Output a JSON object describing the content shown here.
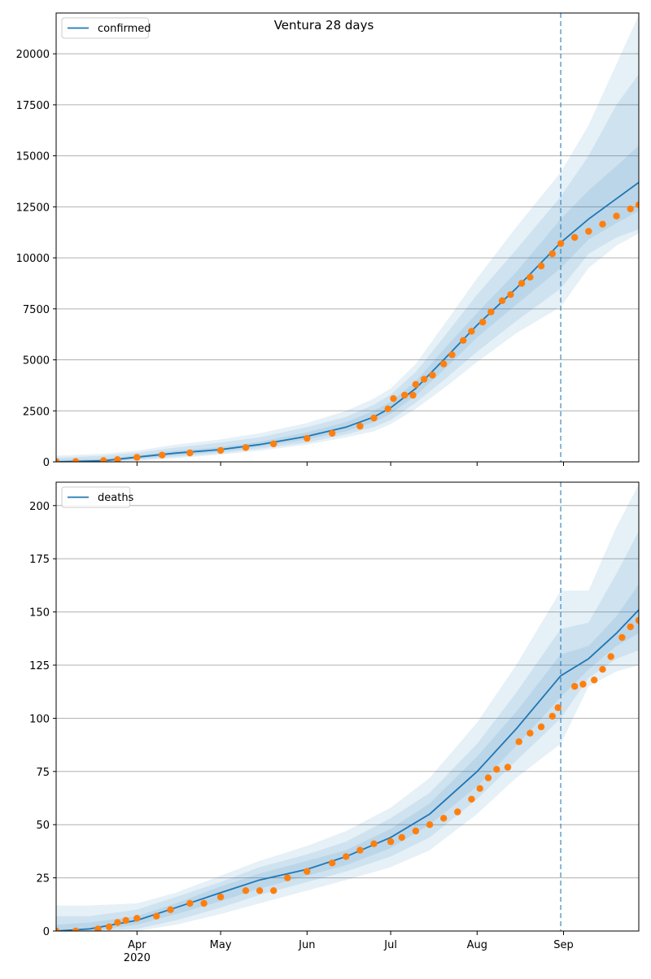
{
  "figure_title": "Ventura 28 days",
  "colors": {
    "model": "#1f77b4",
    "observed": "#ff7f0e",
    "band": "#1f77b4",
    "grid": "#b0b0b0",
    "vline": "#1f77b4"
  },
  "chart_data": [
    {
      "type": "line",
      "panel": "confirmed",
      "legend": [
        "confirmed"
      ],
      "legend_position": "top-left",
      "x_range": [
        "2020-03-03",
        "2020-09-28"
      ],
      "forecast_start": "2020-08-31",
      "ylim": [
        0,
        22000
      ],
      "yticks": [
        0,
        2500,
        5000,
        7500,
        10000,
        12500,
        15000,
        17500,
        20000
      ],
      "grid": "y",
      "model": {
        "x": [
          "2020-03-03",
          "2020-03-20",
          "2020-04-01",
          "2020-04-15",
          "2020-05-01",
          "2020-05-15",
          "2020-06-01",
          "2020-06-15",
          "2020-06-25",
          "2020-07-01",
          "2020-07-10",
          "2020-07-20",
          "2020-08-01",
          "2020-08-15",
          "2020-08-31",
          "2020-09-10",
          "2020-09-20",
          "2020-09-28"
        ],
        "y": [
          0,
          50,
          230,
          430,
          600,
          850,
          1250,
          1700,
          2200,
          2650,
          3600,
          5000,
          6700,
          8500,
          10750,
          11900,
          12900,
          13700
        ],
        "bands": [
          {
            "lower": [
              0,
              0,
              40,
              180,
              350,
              550,
              850,
              1200,
              1500,
              1850,
              2600,
              3600,
              4900,
              6300,
              7600,
              9500,
              10600,
              11200
            ],
            "upper": [
              300,
              400,
              550,
              850,
              1100,
              1400,
              1900,
              2500,
              3100,
              3600,
              4800,
              6700,
              9000,
              11500,
              14200,
              16500,
              19500,
              21900
            ]
          },
          {
            "lower": [
              0,
              0,
              100,
              250,
              420,
              650,
              950,
              1350,
              1700,
              2050,
              2900,
              4000,
              5400,
              6900,
              8500,
              10200,
              11000,
              11400
            ],
            "upper": [
              200,
              300,
              450,
              700,
              950,
              1200,
              1700,
              2200,
              2800,
              3300,
              4400,
              6100,
              8200,
              10400,
              13000,
              15000,
              17500,
              19000
            ]
          },
          {
            "lower": [
              0,
              10,
              150,
              330,
              500,
              750,
              1100,
              1500,
              1950,
              2350,
              3250,
              4500,
              6100,
              7700,
              9500,
              10900,
              11700,
              12300
            ],
            "upper": [
              100,
              150,
              320,
              550,
              720,
              980,
              1450,
              1950,
              2500,
              2950,
              3950,
              5500,
              7300,
              9300,
              11900,
              13300,
              14500,
              15500
            ]
          }
        ]
      },
      "observed": {
        "x": [
          "2020-03-03",
          "2020-03-10",
          "2020-03-20",
          "2020-03-25",
          "2020-04-01",
          "2020-04-10",
          "2020-04-20",
          "2020-05-01",
          "2020-05-10",
          "2020-05-20",
          "2020-06-01",
          "2020-06-10",
          "2020-06-20",
          "2020-06-25",
          "2020-06-30",
          "2020-07-02",
          "2020-07-06",
          "2020-07-09",
          "2020-07-10",
          "2020-07-13",
          "2020-07-16",
          "2020-07-20",
          "2020-07-23",
          "2020-07-27",
          "2020-07-30",
          "2020-08-03",
          "2020-08-06",
          "2020-08-10",
          "2020-08-13",
          "2020-08-17",
          "2020-08-20",
          "2020-08-24",
          "2020-08-28",
          "2020-08-31",
          "2020-09-05",
          "2020-09-10",
          "2020-09-15",
          "2020-09-20",
          "2020-09-25",
          "2020-09-28"
        ],
        "y": [
          10,
          15,
          60,
          110,
          220,
          330,
          440,
          560,
          700,
          880,
          1150,
          1400,
          1750,
          2150,
          2600,
          3100,
          3270,
          3270,
          3800,
          4050,
          4250,
          4800,
          5250,
          5950,
          6400,
          6850,
          7350,
          7900,
          8200,
          8750,
          9050,
          9600,
          10200,
          10700,
          11000,
          11300,
          11650,
          12050,
          12400,
          12600
        ]
      }
    },
    {
      "type": "line",
      "panel": "deaths",
      "legend": [
        "deaths"
      ],
      "legend_position": "top-left",
      "x_range": [
        "2020-03-03",
        "2020-09-28"
      ],
      "forecast_start": "2020-08-31",
      "ylim": [
        0,
        211
      ],
      "yticks": [
        0,
        25,
        50,
        75,
        100,
        125,
        150,
        175,
        200
      ],
      "grid": "y",
      "xticks": [
        {
          "date": "2020-04-01",
          "label": "Apr",
          "sub": "2020"
        },
        {
          "date": "2020-05-01",
          "label": "May"
        },
        {
          "date": "2020-06-01",
          "label": "Jun"
        },
        {
          "date": "2020-07-01",
          "label": "Jul"
        },
        {
          "date": "2020-08-01",
          "label": "Aug"
        },
        {
          "date": "2020-09-01",
          "label": "Sep"
        }
      ],
      "model": {
        "x": [
          "2020-03-03",
          "2020-03-15",
          "2020-04-01",
          "2020-04-15",
          "2020-05-01",
          "2020-05-15",
          "2020-06-01",
          "2020-06-15",
          "2020-07-01",
          "2020-07-15",
          "2020-08-01",
          "2020-08-15",
          "2020-08-31",
          "2020-09-10",
          "2020-09-20",
          "2020-09-28"
        ],
        "y": [
          0,
          1,
          5,
          11,
          18,
          24,
          29,
          35,
          44,
          55,
          75,
          95,
          120,
          128,
          140,
          151
        ],
        "bands": [
          {
            "lower": [
              0,
              0,
              0,
              3,
              8,
              13,
              19,
              24,
              30,
              38,
              55,
              72,
              88,
              115,
              122,
              125
            ],
            "upper": [
              12,
              12,
              13,
              18,
              26,
              33,
              40,
              47,
              58,
              72,
              98,
              125,
              160,
              160,
              190,
              210
            ]
          },
          {
            "lower": [
              0,
              0,
              1,
              5,
              11,
              17,
              23,
              28,
              35,
              44,
              62,
              80,
              100,
              119,
              128,
              132
            ],
            "upper": [
              7,
              7,
              10,
              16,
              23,
              30,
              36,
              42,
              53,
              65,
              88,
              112,
              142,
              145,
              168,
              188
            ]
          },
          {
            "lower": [
              0,
              0,
              3,
              8,
              14,
              20,
              26,
              31,
              39,
              50,
              68,
              87,
              110,
              123,
              134,
              140
            ],
            "upper": [
              3,
              4,
              7,
              13,
              21,
              27,
              33,
              38,
              48,
              60,
              82,
              103,
              130,
              134,
              148,
              163
            ]
          }
        ]
      },
      "observed": {
        "x": [
          "2020-03-03",
          "2020-03-10",
          "2020-03-18",
          "2020-03-22",
          "2020-03-25",
          "2020-03-28",
          "2020-04-01",
          "2020-04-08",
          "2020-04-13",
          "2020-04-20",
          "2020-04-25",
          "2020-05-01",
          "2020-05-10",
          "2020-05-15",
          "2020-05-20",
          "2020-05-25",
          "2020-06-01",
          "2020-06-10",
          "2020-06-15",
          "2020-06-20",
          "2020-06-25",
          "2020-07-01",
          "2020-07-05",
          "2020-07-10",
          "2020-07-15",
          "2020-07-20",
          "2020-07-25",
          "2020-07-30",
          "2020-08-02",
          "2020-08-05",
          "2020-08-08",
          "2020-08-12",
          "2020-08-16",
          "2020-08-20",
          "2020-08-24",
          "2020-08-28",
          "2020-08-30",
          "2020-09-05",
          "2020-09-08",
          "2020-09-12",
          "2020-09-15",
          "2020-09-18",
          "2020-09-22",
          "2020-09-25",
          "2020-09-28"
        ],
        "y": [
          0,
          0,
          1,
          2,
          4,
          5,
          6,
          7,
          10,
          13,
          13,
          16,
          19,
          19,
          19,
          25,
          28,
          32,
          35,
          38,
          41,
          42,
          44,
          47,
          50,
          53,
          56,
          62,
          67,
          72,
          76,
          77,
          89,
          93,
          96,
          101,
          105,
          115,
          116,
          118,
          123,
          129,
          138,
          143,
          146
        ]
      }
    }
  ]
}
